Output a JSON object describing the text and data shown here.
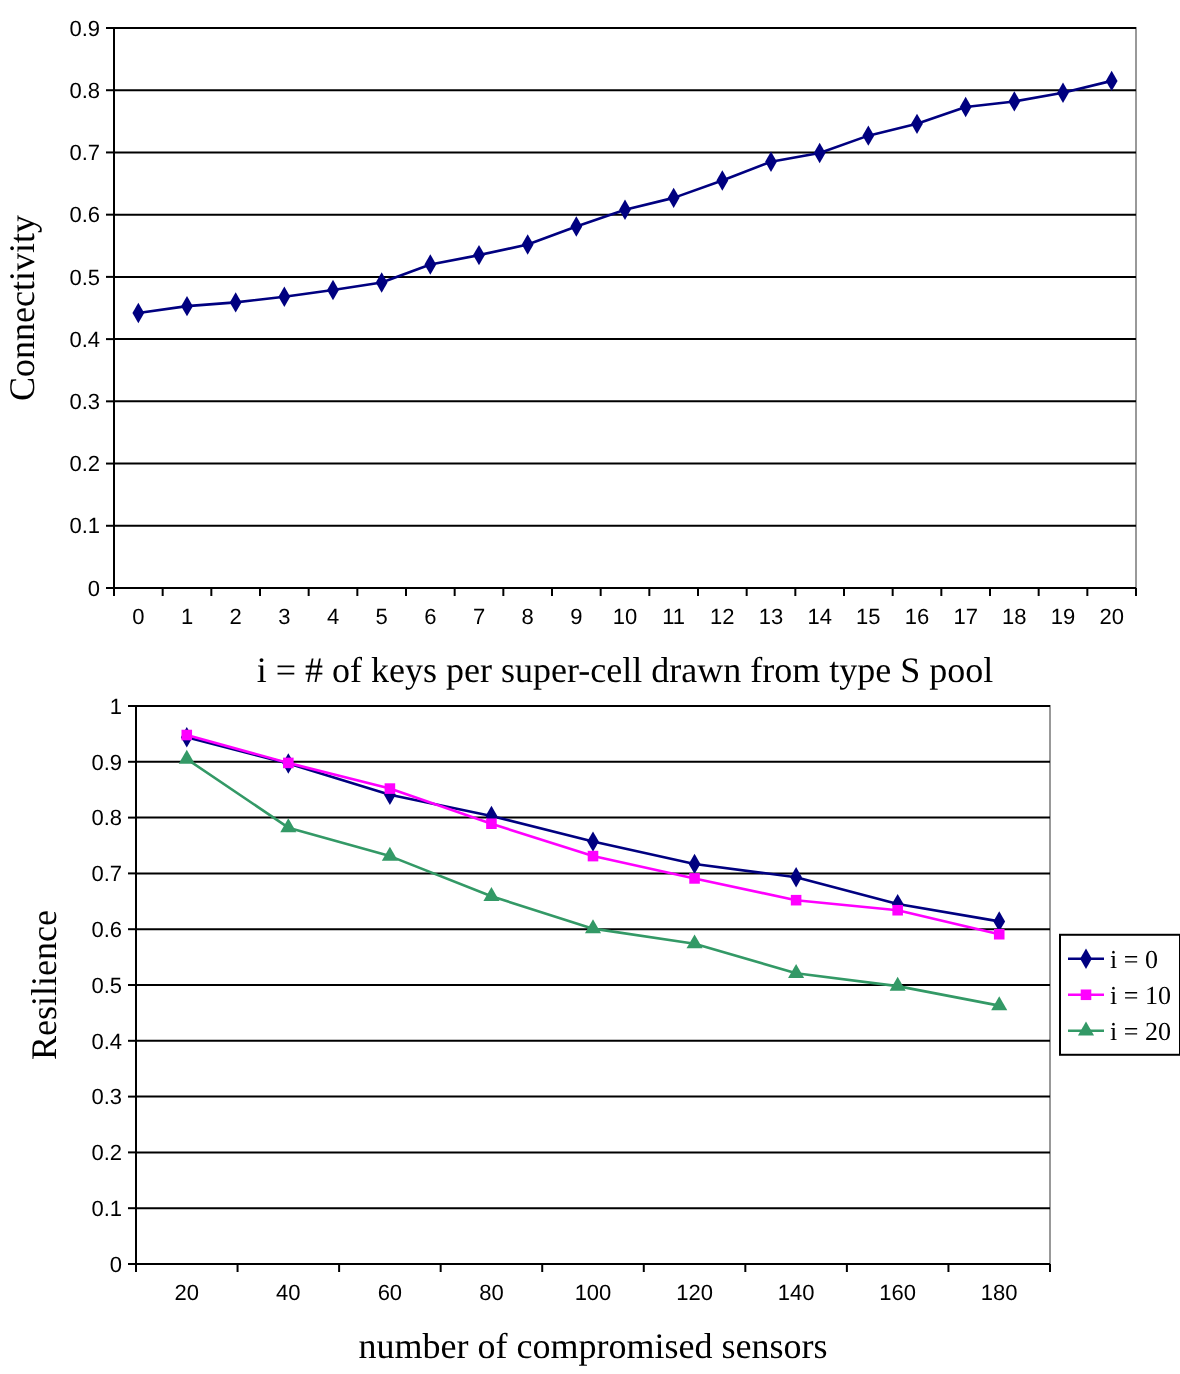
{
  "chart_data": [
    {
      "type": "line",
      "xlabel": "i = # of keys per super-cell drawn from type S pool",
      "ylabel": "Connectivity",
      "x": [
        0,
        1,
        2,
        3,
        4,
        5,
        6,
        7,
        8,
        9,
        10,
        11,
        12,
        13,
        14,
        15,
        16,
        17,
        18,
        19,
        20
      ],
      "xlim": [
        -0.5,
        20.5
      ],
      "xticks": [
        0,
        1,
        2,
        3,
        4,
        5,
        6,
        7,
        8,
        9,
        10,
        11,
        12,
        13,
        14,
        15,
        16,
        17,
        18,
        19,
        20
      ],
      "series": [
        {
          "color": "#000080",
          "marker": "diamond",
          "values": [
            0.442,
            0.453,
            0.459,
            0.468,
            0.479,
            0.491,
            0.52,
            0.535,
            0.552,
            0.581,
            0.608,
            0.627,
            0.655,
            0.685,
            0.699,
            0.727,
            0.746,
            0.773,
            0.782,
            0.796,
            0.815
          ]
        }
      ],
      "ylim": [
        0,
        0.9
      ],
      "yticks": [
        0,
        0.1,
        0.2,
        0.3,
        0.4,
        0.5,
        0.6,
        0.7,
        0.8,
        0.9
      ],
      "grid": "y",
      "legend": false
    },
    {
      "type": "line",
      "xlabel": "number of compromised sensors",
      "ylabel": "Resilience",
      "categories": [
        "20",
        "40",
        "60",
        "80",
        "100",
        "120",
        "140",
        "160",
        "180"
      ],
      "series": [
        {
          "name": "i = 0",
          "color": "#000080",
          "marker": "diamond",
          "values": [
            0.944,
            0.897,
            0.841,
            0.803,
            0.757,
            0.717,
            0.693,
            0.645,
            0.614
          ]
        },
        {
          "name": "i = 10",
          "color": "#ff00ff",
          "marker": "square",
          "values": [
            0.948,
            0.898,
            0.852,
            0.789,
            0.731,
            0.691,
            0.652,
            0.634,
            0.591
          ]
        },
        {
          "name": "i = 20",
          "color": "#339966",
          "marker": "triangle",
          "values": [
            0.905,
            0.782,
            0.731,
            0.659,
            0.601,
            0.574,
            0.521,
            0.498,
            0.463
          ]
        }
      ],
      "ylim": [
        0,
        1
      ],
      "yticks": [
        0,
        0.1,
        0.2,
        0.3,
        0.4,
        0.5,
        0.6,
        0.7,
        0.8,
        0.9,
        1
      ],
      "grid": "y",
      "legend": "right"
    }
  ]
}
